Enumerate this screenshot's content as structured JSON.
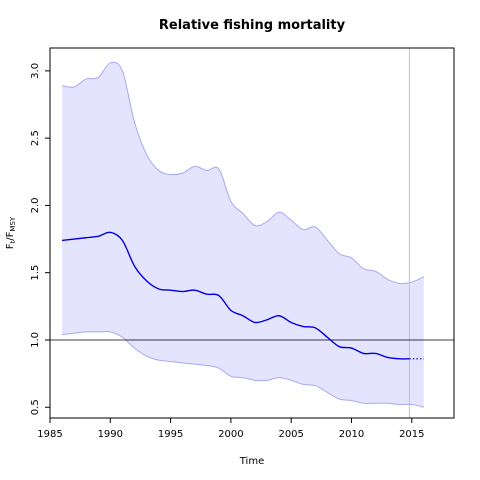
{
  "chart_data": {
    "type": "area",
    "title": "Relative fishing mortality",
    "xlabel": "Time",
    "ylabel": {
      "main": "F",
      "sub1": "t",
      "sep": "/F",
      "sub2": "MSY"
    },
    "xlim": [
      1985,
      2018.5
    ],
    "ylim": [
      0.42,
      3.17
    ],
    "x_ticks": [
      1985,
      1990,
      1995,
      2000,
      2005,
      2010,
      2015
    ],
    "y_ticks": [
      0.5,
      1.0,
      1.5,
      2.0,
      2.5,
      3.0
    ],
    "x_tick_labels": [
      "1985",
      "1990",
      "1995",
      "2000",
      "2005",
      "2010",
      "2015"
    ],
    "y_tick_labels": [
      "0.5",
      "1.0",
      "1.5",
      "2.0",
      "2.5",
      "3.0"
    ],
    "reference_line_y": 1.0,
    "vertical_line_x": 2014.8,
    "forecast_start": 2014.8,
    "colors": {
      "estimate": "#0000dd",
      "band_fill": "#e4e4ff",
      "band_edge": "#a8a8f0",
      "vline": "#c0c0c0",
      "refline": "#000000"
    },
    "x": [
      1986,
      1987,
      1988,
      1989,
      1990,
      1991,
      1992,
      1993,
      1994,
      1995,
      1996,
      1997,
      1998,
      1999,
      2000,
      2001,
      2002,
      2003,
      2004,
      2005,
      2006,
      2007,
      2008,
      2009,
      2010,
      2011,
      2012,
      2013,
      2014,
      2015,
      2016
    ],
    "series": [
      {
        "name": "estimate",
        "values": [
          1.74,
          1.75,
          1.76,
          1.77,
          1.8,
          1.74,
          1.55,
          1.44,
          1.38,
          1.37,
          1.36,
          1.37,
          1.34,
          1.33,
          1.22,
          1.18,
          1.13,
          1.15,
          1.18,
          1.13,
          1.1,
          1.09,
          1.02,
          0.95,
          0.94,
          0.9,
          0.9,
          0.87,
          0.86,
          0.86,
          0.86
        ]
      },
      {
        "name": "upper",
        "values": [
          2.89,
          2.88,
          2.94,
          2.95,
          3.06,
          3.0,
          2.62,
          2.38,
          2.26,
          2.23,
          2.24,
          2.29,
          2.26,
          2.27,
          2.03,
          1.94,
          1.85,
          1.88,
          1.95,
          1.89,
          1.82,
          1.84,
          1.74,
          1.64,
          1.61,
          1.53,
          1.51,
          1.45,
          1.42,
          1.43,
          1.47
        ]
      },
      {
        "name": "lower",
        "values": [
          1.04,
          1.05,
          1.06,
          1.06,
          1.06,
          1.02,
          0.94,
          0.88,
          0.85,
          0.84,
          0.83,
          0.82,
          0.81,
          0.79,
          0.73,
          0.72,
          0.7,
          0.7,
          0.72,
          0.7,
          0.67,
          0.66,
          0.61,
          0.56,
          0.55,
          0.53,
          0.53,
          0.53,
          0.52,
          0.52,
          0.5
        ]
      }
    ]
  }
}
